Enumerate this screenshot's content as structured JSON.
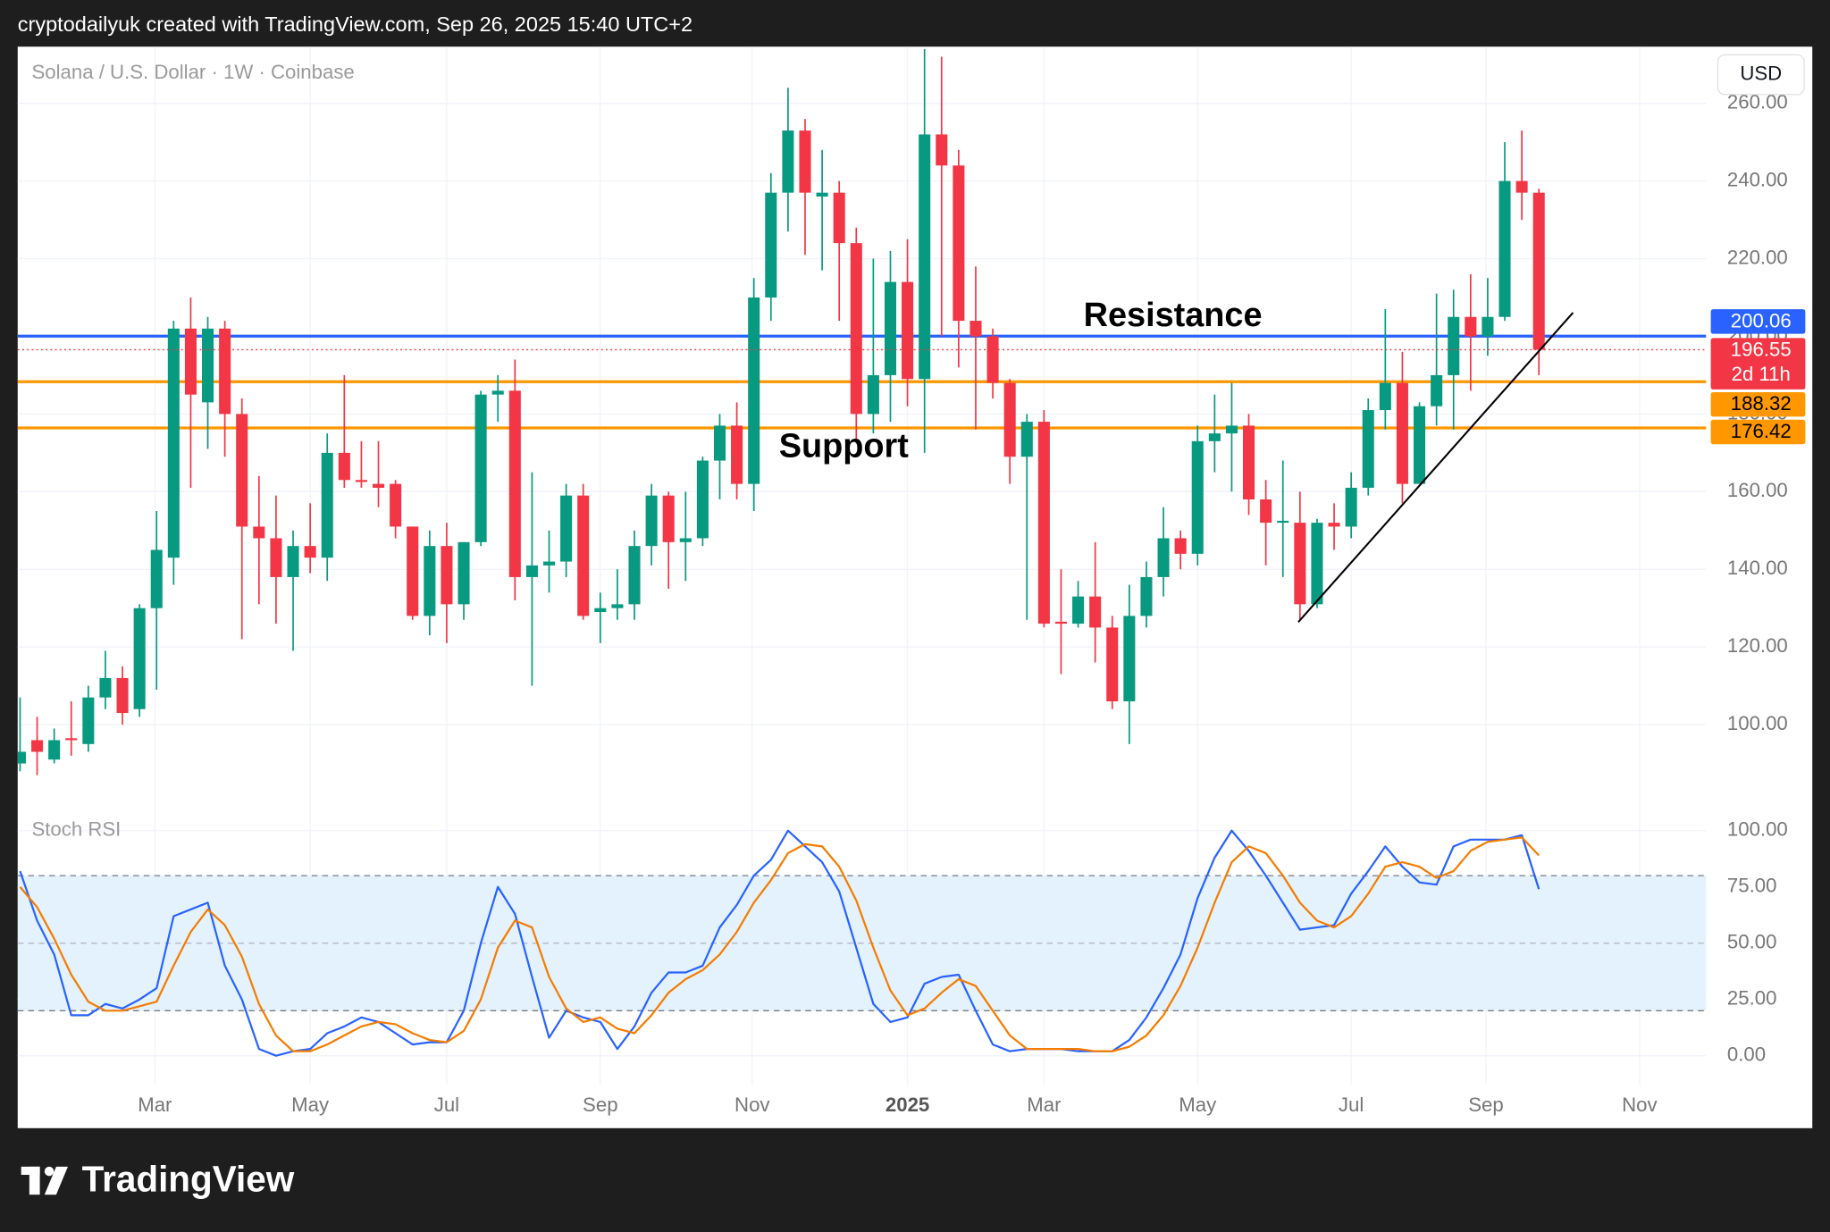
{
  "header": "cryptodailyuk created with TradingView.com, Sep 26, 2025 15:40 UTC+2",
  "brand": "TradingView",
  "chart_data": [
    {
      "type": "candlestick",
      "title": "Solana / U.S. Dollar · 1W · Coinbase",
      "currency": "USD",
      "up_color": "#089981",
      "down_color": "#f23645",
      "open": [
        90,
        96,
        91,
        96.5,
        95,
        107,
        112,
        104,
        130,
        143,
        202,
        183,
        202,
        180,
        151,
        148,
        138,
        146,
        143,
        170,
        163,
        162,
        162,
        151,
        128,
        146,
        131,
        147,
        185,
        186,
        138,
        141,
        142,
        159,
        129,
        130,
        131,
        146,
        159,
        147,
        148,
        168,
        177,
        162,
        210,
        237,
        253,
        236,
        237,
        224,
        180,
        190,
        214,
        189,
        252,
        244,
        204,
        200,
        188,
        169,
        178,
        126.5,
        126,
        133,
        125,
        106,
        128,
        138,
        148,
        144,
        173,
        175,
        177,
        158,
        152,
        152,
        131,
        152,
        151,
        161,
        181,
        188,
        162,
        182,
        190,
        205,
        200,
        205,
        240,
        237
      ],
      "high": [
        107,
        102,
        99,
        106,
        110,
        119,
        115,
        131,
        155,
        204,
        210,
        205,
        204,
        184,
        164,
        159,
        150,
        157,
        175,
        190,
        173,
        173,
        163,
        151,
        150,
        152,
        147,
        186,
        190,
        194,
        165,
        150,
        162,
        162,
        134,
        140,
        150,
        162,
        160,
        160,
        169,
        180,
        183,
        215,
        242,
        264,
        256,
        248,
        240,
        228,
        220,
        222,
        225,
        274,
        272,
        248,
        218,
        202,
        189,
        180,
        181,
        140,
        137,
        147,
        128,
        136,
        142,
        156,
        150,
        177,
        185,
        188,
        180,
        163,
        168,
        160,
        153,
        157,
        165,
        184,
        207,
        196,
        183,
        211,
        212,
        216,
        215,
        250,
        253,
        238
      ],
      "low": [
        88,
        87,
        90,
        92,
        93,
        104,
        100,
        102,
        109,
        136,
        161,
        171,
        169,
        122,
        131,
        126,
        119,
        139,
        137,
        161,
        161,
        156,
        148,
        127,
        123,
        121,
        127,
        146,
        178,
        132,
        110,
        134,
        138,
        127,
        121,
        127,
        127,
        141,
        135,
        137,
        146,
        158,
        158,
        155,
        204,
        227,
        221,
        217,
        204,
        173,
        175,
        178,
        182,
        170,
        200,
        192,
        176,
        184,
        162,
        127,
        125,
        113,
        125,
        116,
        104,
        95,
        125,
        133,
        140,
        141,
        165,
        160,
        154,
        141,
        138,
        127,
        130,
        145,
        148,
        159,
        176,
        157,
        162,
        177,
        176,
        186,
        195,
        204,
        230,
        190
      ],
      "close": [
        93,
        93,
        96,
        96,
        107,
        112,
        103,
        130,
        145,
        202,
        185,
        202,
        180,
        151,
        148,
        138,
        146,
        143,
        170,
        163,
        162.5,
        161,
        151,
        128,
        146,
        131,
        147,
        185,
        186,
        138,
        141,
        142,
        159,
        128,
        130,
        131,
        146,
        159,
        147,
        148,
        168,
        177,
        162,
        210,
        237,
        253,
        237,
        237,
        224,
        180,
        190,
        214,
        189,
        252,
        244,
        204,
        200,
        188,
        169,
        178,
        126,
        126,
        133,
        125,
        106,
        128,
        138,
        148,
        144,
        173,
        175,
        177,
        158,
        152,
        152.5,
        131,
        152,
        151,
        161,
        181,
        188,
        162,
        182,
        190,
        205,
        200,
        205,
        240,
        237,
        196.55
      ],
      "countdown": "2d 11h",
      "xlim": [
        -0.14,
        98.8
      ],
      "ylim": [
        77.8,
        274.6
      ],
      "yticks": [
        {
          "value": 100,
          "label": "100.00"
        },
        {
          "value": 120,
          "label": "120.00"
        },
        {
          "value": 140,
          "label": "140.00"
        },
        {
          "value": 160,
          "label": "160.00"
        },
        {
          "value": 180,
          "label": "180.00"
        },
        {
          "value": 200,
          "label": "200.00"
        },
        {
          "value": 220,
          "label": "220.00"
        },
        {
          "value": 240,
          "label": "240.00"
        },
        {
          "value": 260,
          "label": "260.00"
        }
      ],
      "grid": true,
      "levels": [
        {
          "value": 200.06,
          "color": "#2962ff"
        },
        {
          "value": 188.32,
          "color": "#ff9800"
        },
        {
          "value": 176.42,
          "color": "#ff9800"
        }
      ],
      "annotations": [
        "Resistance",
        "Support"
      ],
      "trendline": {
        "x": [
          74.9,
          91.0
        ],
        "y": [
          126.4,
          206.1
        ]
      }
    },
    {
      "type": "line",
      "title": "Stoch RSI",
      "xlim": [
        -0.14,
        98.8
      ],
      "ylim": [
        -13,
        106.2
      ],
      "yticks": [
        {
          "value": 0,
          "label": "0.00"
        },
        {
          "value": 25,
          "label": "25.00"
        },
        {
          "value": 50,
          "label": "50.00"
        },
        {
          "value": 75,
          "label": "75.00"
        },
        {
          "value": 100,
          "label": "100.00"
        }
      ],
      "xticks": [
        {
          "value": 7.9,
          "label": "Mar"
        },
        {
          "value": 17.0,
          "label": "May"
        },
        {
          "value": 25.0,
          "label": "Jul"
        },
        {
          "value": 34.0,
          "label": "Sep"
        },
        {
          "value": 42.9,
          "label": "Nov"
        },
        {
          "value": 52.0,
          "label": "2025"
        },
        {
          "value": 60.0,
          "label": "Mar"
        },
        {
          "value": 69.0,
          "label": "May"
        },
        {
          "value": 78.0,
          "label": "Jul"
        },
        {
          "value": 85.9,
          "label": "Sep"
        },
        {
          "value": 94.9,
          "label": "Nov"
        }
      ],
      "bands": {
        "upper": 80,
        "middle": 50,
        "lower": 20,
        "fill": "#e3f2fd"
      },
      "series": [
        {
          "color": "#2962ff",
          "values": [
            82,
            60,
            45,
            18,
            18,
            23,
            21,
            25,
            30,
            62,
            65,
            68,
            40,
            25,
            3,
            0,
            2,
            3,
            10,
            13,
            17,
            15,
            10,
            5,
            6,
            6,
            20,
            50,
            75,
            63,
            35,
            8,
            20,
            17,
            15,
            3,
            13,
            28,
            37,
            37,
            40,
            57,
            67,
            80,
            87,
            100,
            93,
            86,
            73,
            48,
            23,
            15,
            17,
            32,
            35,
            36,
            20,
            5,
            2,
            3,
            3,
            3,
            2,
            2,
            2,
            7,
            17,
            30,
            45,
            70,
            88,
            100,
            91,
            80,
            68,
            56,
            57,
            58,
            72,
            82,
            93,
            84,
            77,
            76,
            93,
            96,
            96,
            96,
            98,
            74
          ]
        },
        {
          "color": "#f57c00",
          "values": [
            75,
            66,
            52,
            36,
            24,
            20,
            20,
            22,
            24,
            40,
            55,
            65,
            58,
            44,
            23,
            9,
            2,
            2,
            5,
            9,
            13,
            15,
            14,
            10,
            7,
            6,
            11,
            25,
            48,
            60,
            57,
            35,
            21,
            15,
            17,
            12,
            10,
            18,
            28,
            34,
            38,
            45,
            55,
            68,
            78,
            90,
            94,
            93,
            84,
            69,
            48,
            29,
            18,
            21,
            28,
            34,
            31,
            20,
            9,
            3,
            3,
            3,
            3,
            2,
            2,
            4,
            9,
            18,
            31,
            48,
            68,
            86,
            93,
            90,
            80,
            68,
            60,
            57,
            62,
            72,
            84,
            86,
            84,
            79,
            82,
            91,
            95,
            96,
            97,
            89
          ]
        }
      ]
    }
  ]
}
